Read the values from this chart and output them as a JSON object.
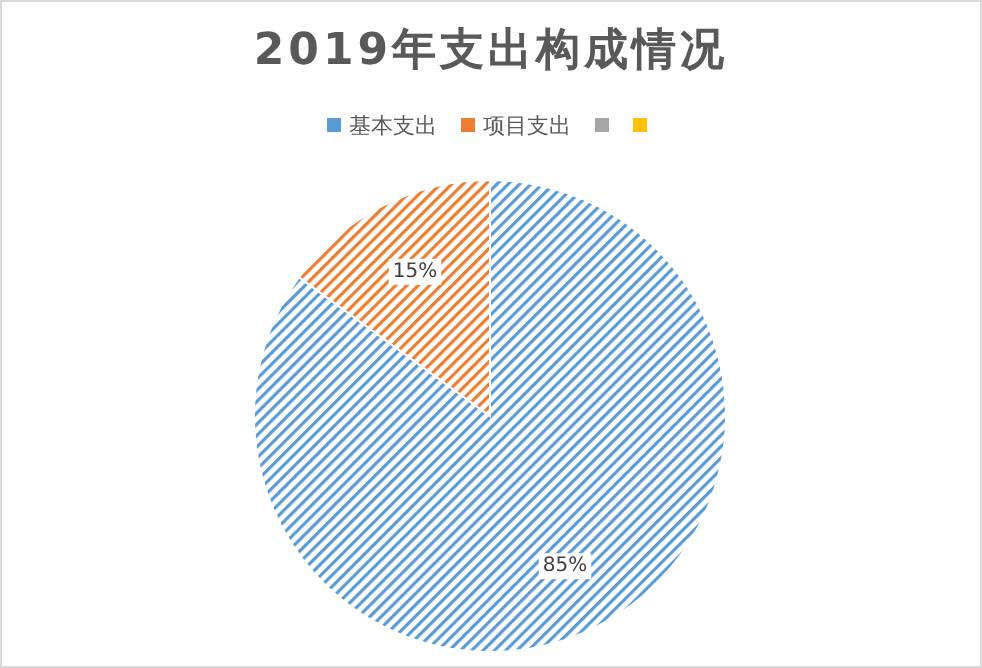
{
  "chart_data": {
    "type": "pie",
    "title": "2019年支出构成情况",
    "categories": [
      "基本支出",
      "项目支出",
      null,
      null
    ],
    "values": [
      85,
      15,
      0,
      0
    ],
    "value_labels": [
      "85%",
      "15%",
      null,
      null
    ],
    "colors": [
      "#5b9bd5",
      "#ed7d31",
      "#a5a5a5",
      "#ffc000"
    ],
    "legend": "top"
  }
}
